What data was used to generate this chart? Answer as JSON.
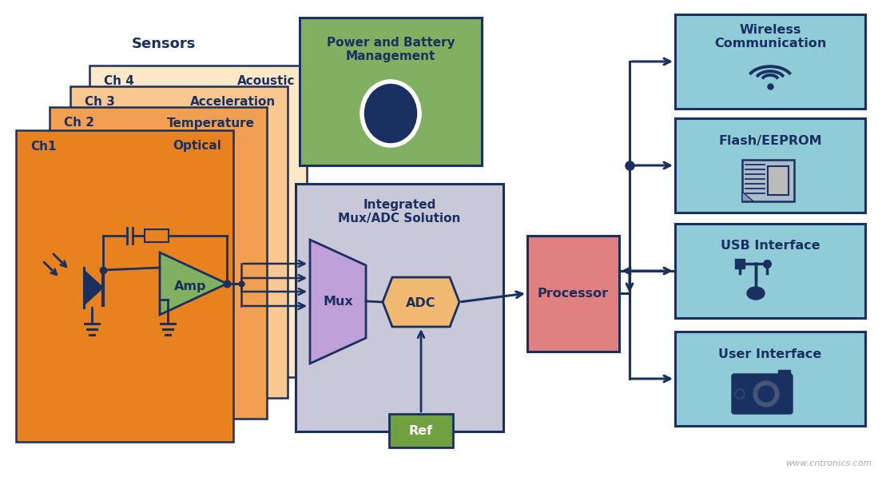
{
  "bg_color": "#ffffff",
  "dark_blue": "#1a3060",
  "orange_dark": "#e8821e",
  "orange_mid": "#f0a050",
  "orange_light": "#f8c890",
  "orange_lightest": "#fde8c8",
  "green_power": "#80b060",
  "green_ref": "#70a040",
  "purple_mux": "#c0a0d8",
  "adc_color": "#f0b870",
  "processor_color": "#e08080",
  "light_blue": "#90ccd8",
  "gray_box": "#c8c8d8",
  "sensors_label": "Sensors",
  "power_label": "Power and Battery\nManagement",
  "integrated_label": "Integrated\nMux/ADC Solution",
  "ref_label": "Ref",
  "wireless_label": "Wireless\nCommunication",
  "flash_label": "Flash/EEPROM",
  "usb_label": "USB Interface",
  "user_label": "User Interface",
  "watermark": "www.cntronics.com"
}
